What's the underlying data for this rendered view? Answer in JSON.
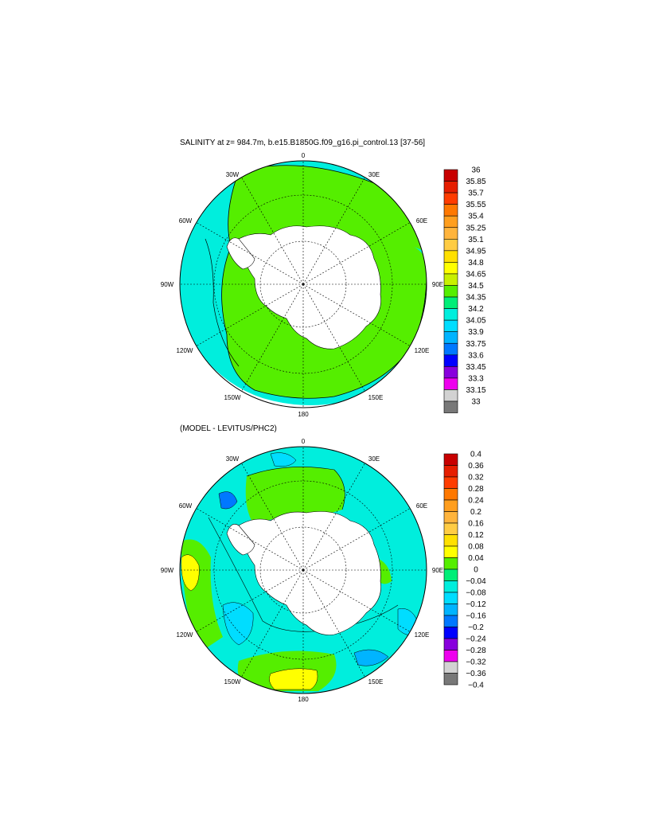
{
  "panels": [
    {
      "id": "top",
      "title": "SALINITY at z= 984.7m, b.e15.B1850G.f09_g16.pi_control.13 [37-56]",
      "lon_labels": [
        "0",
        "30E",
        "60E",
        "90E",
        "120E",
        "150E",
        "180",
        "150W",
        "120W",
        "90W",
        "60W",
        "30W"
      ],
      "colorbar": {
        "levels": [
          "36",
          "35.85",
          "35.7",
          "35.55",
          "35.4",
          "35.25",
          "35.1",
          "34.95",
          "34.8",
          "34.65",
          "34.5",
          "34.35",
          "34.2",
          "34.05",
          "33.9",
          "33.75",
          "33.6",
          "33.45",
          "33.3",
          "33.15",
          "33"
        ],
        "colors": [
          "#c80000",
          "#e61e00",
          "#ff3c00",
          "#ff7800",
          "#ff9e1e",
          "#ffb43c",
          "#ffcc44",
          "#ffe000",
          "#ffff00",
          "#c8f000",
          "#55ee00",
          "#00ee77",
          "#00eedd",
          "#00ddff",
          "#00b4ff",
          "#0078ff",
          "#0000ff",
          "#8800dd",
          "#ee00ee",
          "#d2d2d2",
          "#787878"
        ]
      }
    },
    {
      "id": "bottom",
      "title": "(MODEL - LEVITUS/PHC2)",
      "lon_labels": [
        "0",
        "30E",
        "60E",
        "90E",
        "120E",
        "150E",
        "180",
        "150W",
        "120W",
        "90W",
        "60W",
        "30W"
      ],
      "colorbar": {
        "levels": [
          "0.4",
          "0.36",
          "0.32",
          "0.28",
          "0.24",
          "0.2",
          "0.16",
          "0.12",
          "0.08",
          "0.04",
          "0",
          "−0.04",
          "−0.08",
          "−0.12",
          "−0.16",
          "−0.2",
          "−0.24",
          "−0.28",
          "−0.32",
          "−0.36",
          "−0.4"
        ],
        "colors": [
          "#c80000",
          "#e61e00",
          "#ff3c00",
          "#ff7800",
          "#ff9e1e",
          "#ffb43c",
          "#ffcc44",
          "#ffe000",
          "#ffff00",
          "#55ee00",
          "#00ee77",
          "#00eedd",
          "#00ddff",
          "#00b4ff",
          "#0078ff",
          "#0000ff",
          "#8800dd",
          "#ee00ee",
          "#d2d2d2",
          "#787878"
        ]
      }
    }
  ],
  "colors": {
    "salinity_green": "#55ee00",
    "salinity_cyan": "#00eedd",
    "diff_cyan": "#00eedd",
    "diff_light_cyan": "#00ddff",
    "diff_green": "#55ee00",
    "diff_yellow": "#ffff00",
    "land": "#ffffff"
  }
}
